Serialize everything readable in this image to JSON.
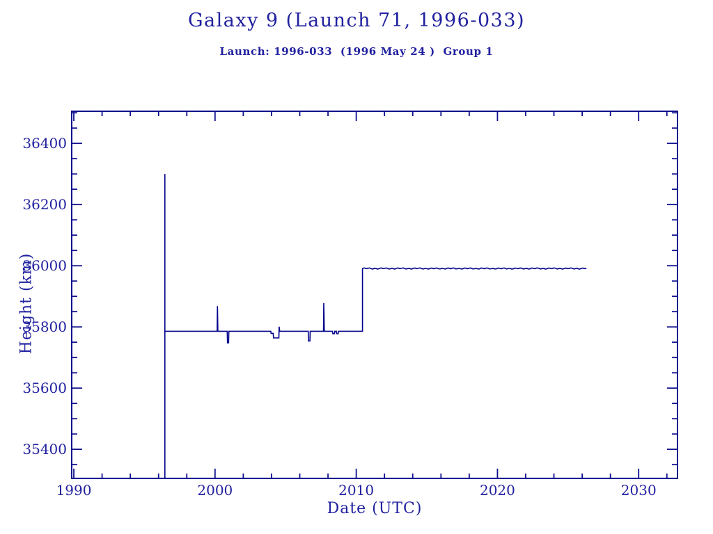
{
  "header": {
    "title": "Galaxy 9 (Launch 71, 1996-033)",
    "subtitle": "Launch: 1996-033  (1996 May 24 )  Group 1"
  },
  "colors": {
    "text": "#2121a0",
    "line": "#00008b",
    "frame": "#10108e",
    "background": "#ffffff"
  },
  "chart_data": {
    "type": "line",
    "title": "Galaxy 9 (Launch 71, 1996-033)",
    "subtitle": "Launch: 1996-033  (1996 May 24 )  Group 1",
    "xlabel": "Date (UTC)",
    "ylabel": "Height (km)",
    "xlim": [
      1989.85,
      2032.75
    ],
    "ylim": [
      35305,
      36505
    ],
    "x_major_ticks": [
      1990,
      2000,
      2010,
      2020,
      2030
    ],
    "x_minor_step": 2,
    "y_major_ticks": [
      35400,
      35600,
      35800,
      36000,
      36200,
      36400
    ],
    "y_minor_step": 50,
    "grid": false,
    "legend": "none",
    "series": [
      {
        "name": "orbit-height",
        "color": "#00008b",
        "points": [
          [
            1996.45,
            35305
          ],
          [
            1996.45,
            36300
          ],
          [
            1996.45,
            35786
          ],
          [
            2000.15,
            35786
          ],
          [
            2000.17,
            35868
          ],
          [
            2000.2,
            35786
          ],
          [
            2000.86,
            35786
          ],
          [
            2000.88,
            35748
          ],
          [
            2000.96,
            35748
          ],
          [
            2000.98,
            35786
          ],
          [
            2003.95,
            35786
          ],
          [
            2003.97,
            35779
          ],
          [
            2004.12,
            35779
          ],
          [
            2004.14,
            35764
          ],
          [
            2004.52,
            35764
          ],
          [
            2004.54,
            35801
          ],
          [
            2004.58,
            35786
          ],
          [
            2006.6,
            35786
          ],
          [
            2006.62,
            35754
          ],
          [
            2006.72,
            35754
          ],
          [
            2006.74,
            35786
          ],
          [
            2007.68,
            35786
          ],
          [
            2007.7,
            35878
          ],
          [
            2007.74,
            35786
          ],
          [
            2008.32,
            35786
          ],
          [
            2008.34,
            35778
          ],
          [
            2008.46,
            35778
          ],
          [
            2008.48,
            35786
          ],
          [
            2008.6,
            35786
          ],
          [
            2008.62,
            35778
          ],
          [
            2008.72,
            35778
          ],
          [
            2008.74,
            35786
          ],
          [
            2010.44,
            35786
          ],
          [
            2010.44,
            35991
          ]
        ],
        "flat_tail": {
          "start": 2010.44,
          "end": 2026.3,
          "value": 35991,
          "jitter_km": 3
        }
      }
    ]
  }
}
